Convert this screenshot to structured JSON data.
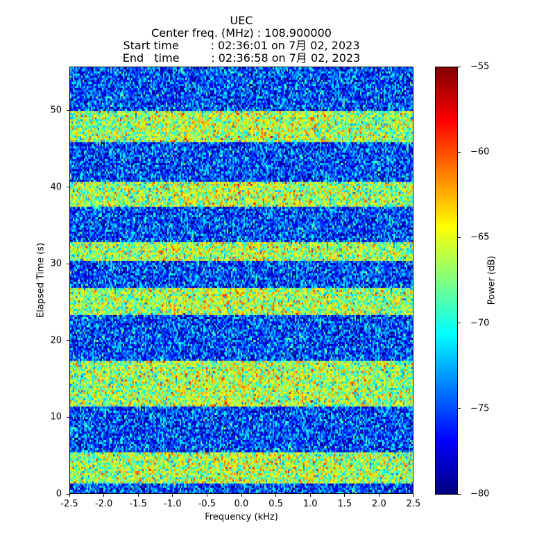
{
  "title": {
    "line1": "UEC",
    "line2": "Center freq. (MHz) : 108.900000",
    "line3": "Start time         : 02:36:01 on 7月 02, 2023",
    "line4": "End   time         : 02:36:58 on 7月 02, 2023"
  },
  "chart_data": {
    "type": "heatmap",
    "xlabel": "Frequency (kHz)",
    "ylabel": "Elapsed Time (s)",
    "xlim": [
      -2.5,
      2.5
    ],
    "ylim": [
      0,
      55.7
    ],
    "x_ticks": [
      "-2.5",
      "-2.0",
      "-1.5",
      "-1.0",
      "-0.5",
      "0.0",
      "0.5",
      "1.0",
      "1.5",
      "2.0",
      "2.5"
    ],
    "y_ticks": [
      "0",
      "10",
      "20",
      "30",
      "40",
      "50"
    ],
    "colormap": "jet",
    "colorbar": {
      "label": "Power (dB)",
      "range": [
        -80,
        -55
      ],
      "ticks": [
        "−55",
        "−60",
        "−65",
        "−70",
        "−75",
        "−80"
      ]
    },
    "signal_bands_s": [
      [
        1.5,
        5.5
      ],
      [
        11.5,
        17.5
      ],
      [
        23.5,
        27.0
      ],
      [
        30.5,
        33.0
      ],
      [
        37.5,
        41.0
      ],
      [
        46.0,
        50.0
      ]
    ],
    "noise_floor_db": -75,
    "signal_band_level_db": -67
  }
}
